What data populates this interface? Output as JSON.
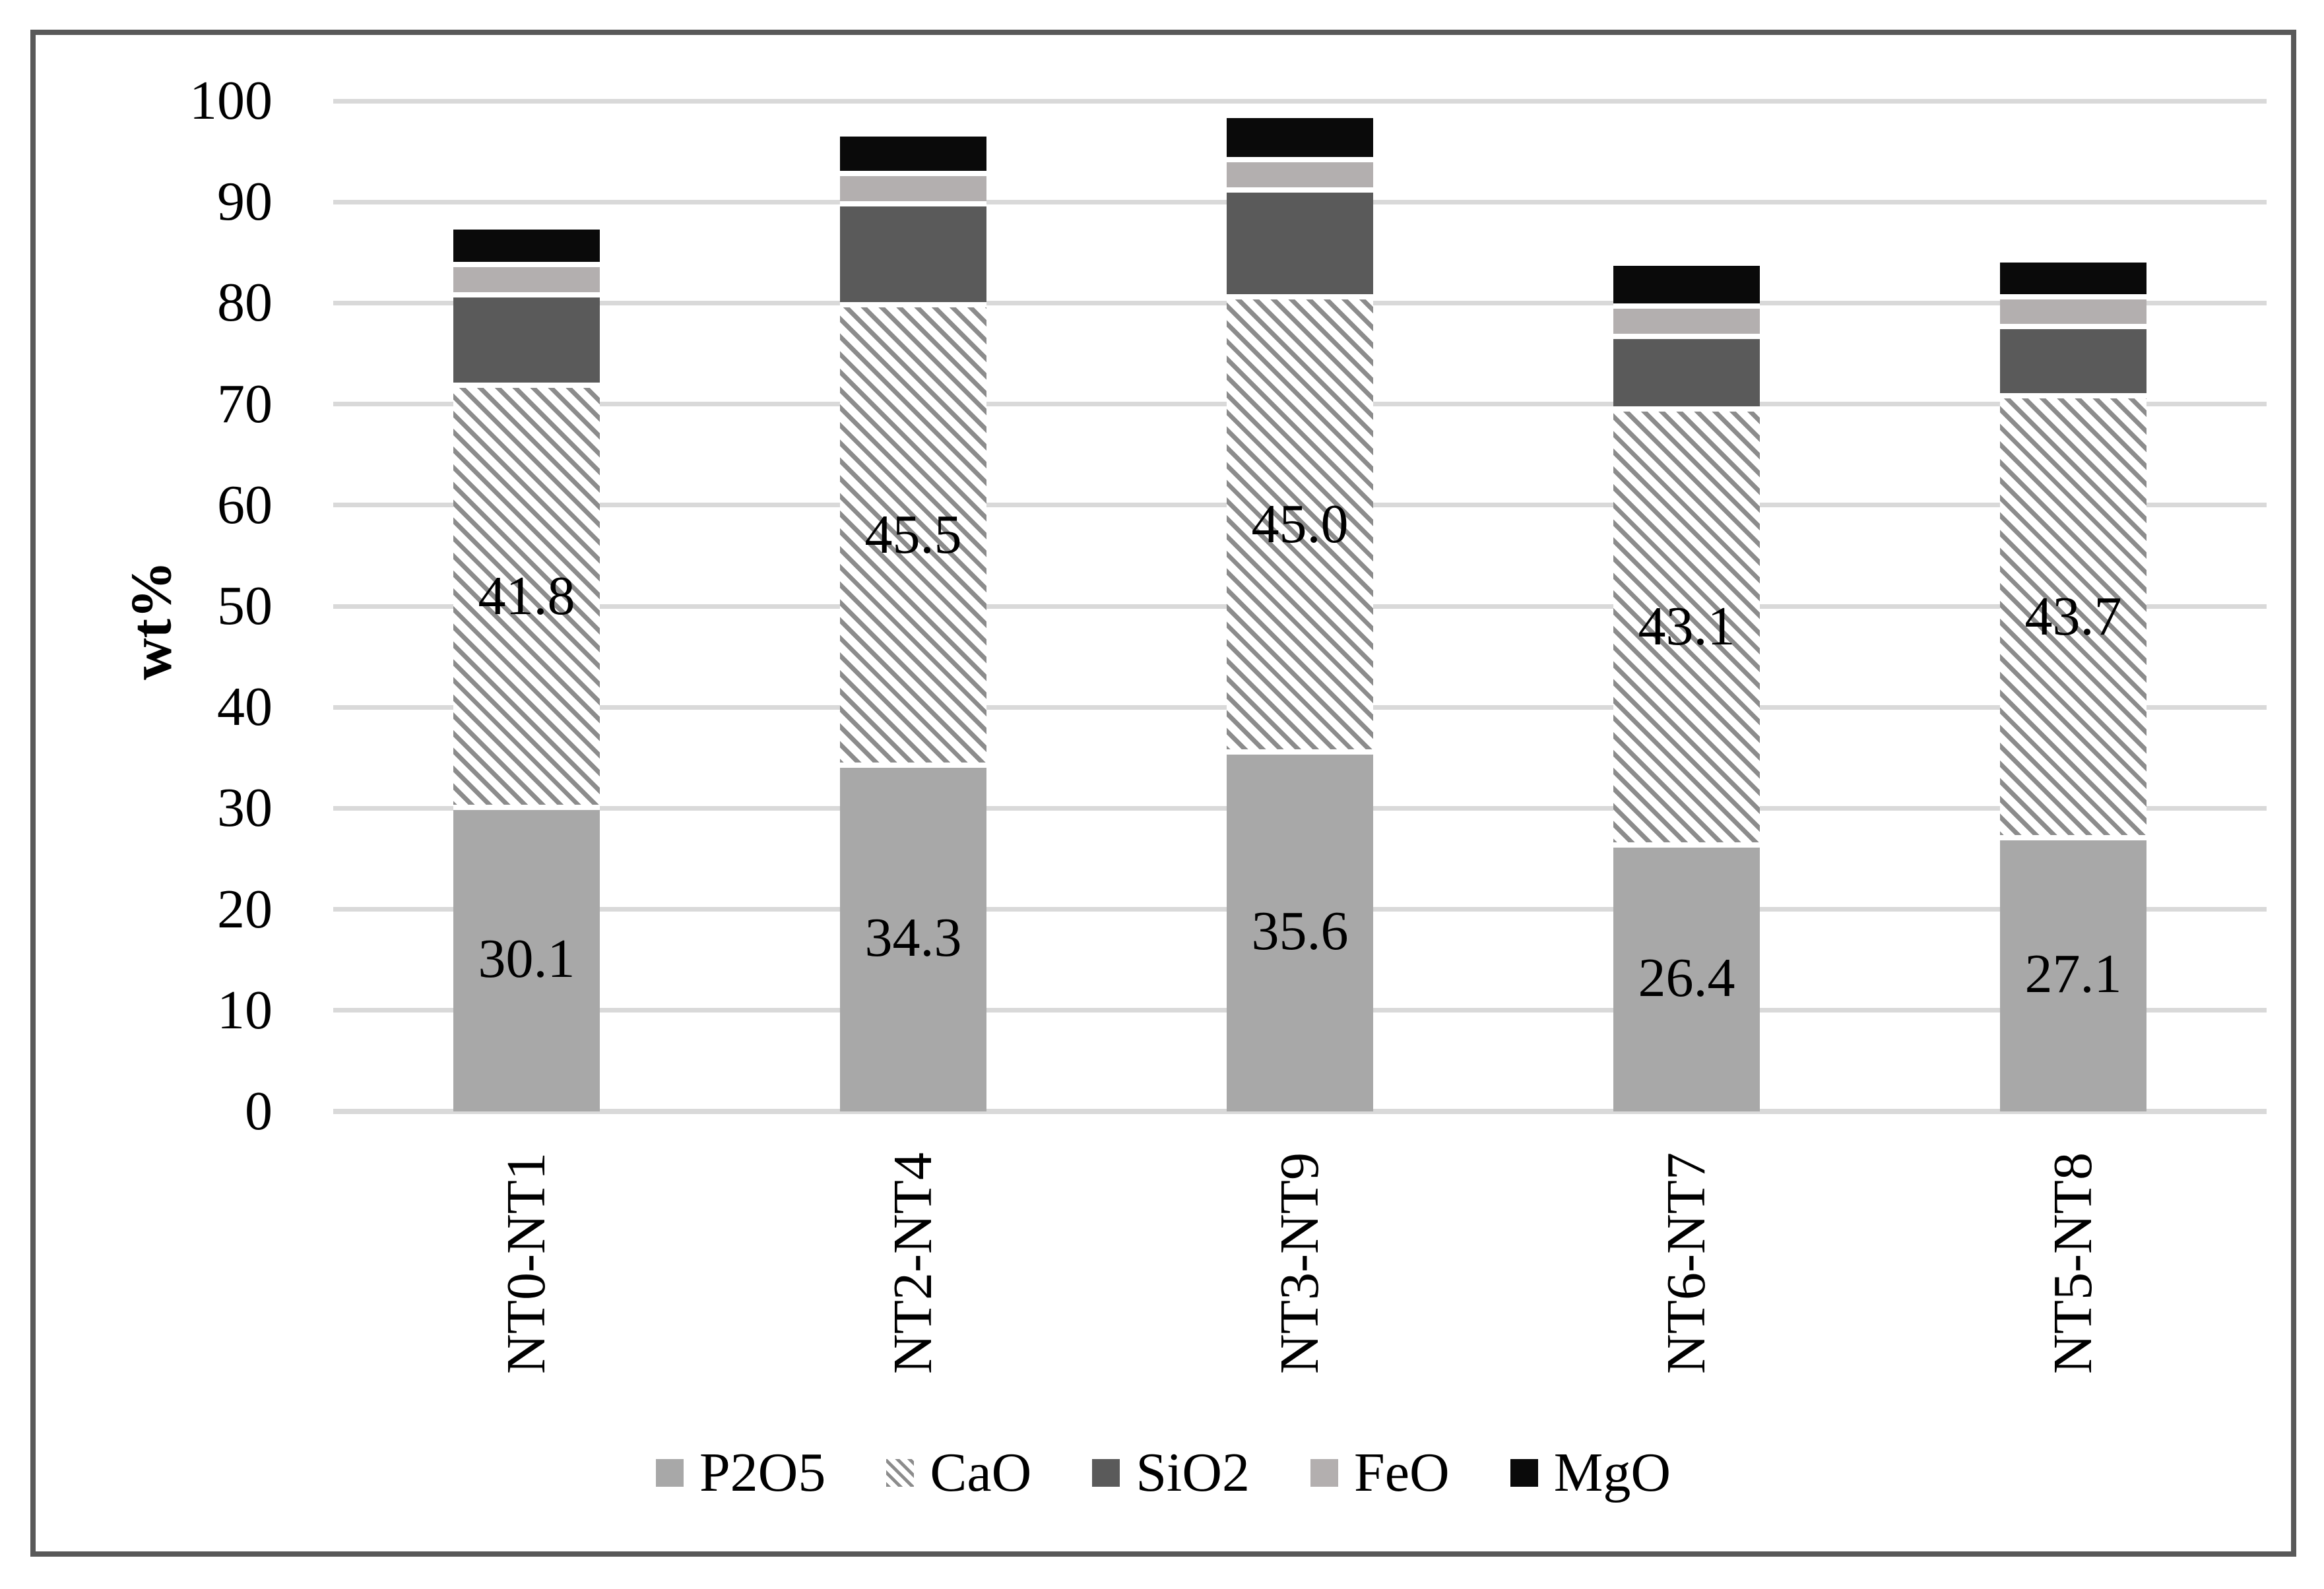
{
  "figure": {
    "background": "#FFFFFF",
    "border_color": "#595959"
  },
  "y_axis": {
    "title": "wt%",
    "tick_labels": [
      "0",
      "10",
      "20",
      "30",
      "40",
      "50",
      "60",
      "70",
      "80",
      "90",
      "100"
    ],
    "min": 0,
    "max": 100,
    "grid_color": "#D9D9D9"
  },
  "chart_data": {
    "type": "bar",
    "stacked": true,
    "title": "",
    "xlabel": "",
    "ylabel": "wt%",
    "ylim": [
      0,
      100
    ],
    "grid": true,
    "legend_position": "bottom",
    "categories": [
      "NT0-NT1",
      "NT2-NT4",
      "NT3-NT9",
      "NT6-NT7",
      "NT5-NT8"
    ],
    "series": [
      {
        "name": "P2O5",
        "color": "#A8A8A8",
        "pattern": "solid",
        "values": [
          30.1,
          34.3,
          35.6,
          26.4,
          27.1
        ],
        "labels": [
          "30.1",
          "34.3",
          "35.6",
          "26.4",
          "27.1"
        ]
      },
      {
        "name": "CaO",
        "color": "#8C8C8C",
        "pattern": "diagonal-hatch",
        "values": [
          41.8,
          45.5,
          45.0,
          43.1,
          43.7
        ],
        "labels": [
          "41.8",
          "45.5",
          "45.0",
          "43.1",
          "43.7"
        ]
      },
      {
        "name": "SiO2",
        "color": "#5A5A5A",
        "pattern": "solid",
        "values": [
          8.9,
          10.0,
          10.6,
          7.2,
          6.9
        ],
        "labels": null
      },
      {
        "name": "FeO",
        "color": "#B3AFAF",
        "pattern": "solid",
        "values": [
          3.0,
          3.0,
          3.0,
          3.0,
          2.9
        ],
        "labels": null
      },
      {
        "name": "MgO",
        "color": "#0A0A0A",
        "pattern": "solid",
        "values": [
          3.5,
          3.7,
          4.1,
          4.0,
          3.4
        ],
        "labels": null
      }
    ]
  },
  "legend": {
    "items": [
      {
        "label": "P2O5"
      },
      {
        "label": "CaO"
      },
      {
        "label": "SiO2"
      },
      {
        "label": "FeO"
      },
      {
        "label": "MgO"
      }
    ]
  }
}
